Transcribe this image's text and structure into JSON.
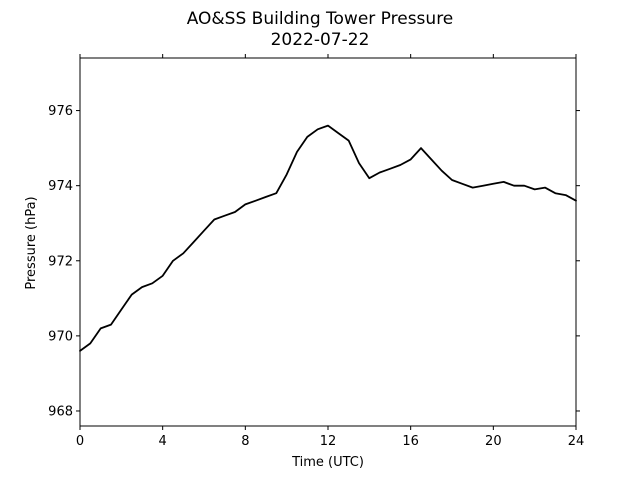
{
  "chart_data": {
    "type": "line",
    "title": "AO&SS Building Tower Pressure",
    "subtitle": "2022-07-22",
    "xlabel": "Time (UTC)",
    "ylabel": "Pressure (hPa)",
    "xlim": [
      0,
      24
    ],
    "ylim": [
      967.6,
      977.4
    ],
    "xticks": [
      0,
      4,
      8,
      12,
      16,
      20,
      24
    ],
    "yticks": [
      968,
      970,
      972,
      974,
      976
    ],
    "grid": false,
    "line_color": "#000000",
    "series": [
      {
        "x": [
          0,
          0.5,
          1,
          1.5,
          2,
          2.5,
          3,
          3.5,
          4,
          4.5,
          5,
          5.5,
          6,
          6.5,
          7,
          7.5,
          8,
          8.5,
          9,
          9.5,
          10,
          10.5,
          11,
          11.5,
          12,
          12.5,
          13,
          13.5,
          14,
          14.5,
          15,
          15.5,
          16,
          16.5,
          17,
          17.5,
          18,
          18.5,
          19,
          19.5,
          20,
          20.5,
          21,
          21.5,
          22,
          22.5,
          23,
          23.5,
          24
        ],
        "y": [
          969.6,
          969.8,
          970.2,
          970.3,
          970.7,
          971.1,
          971.3,
          971.4,
          971.6,
          972.0,
          972.2,
          972.5,
          972.8,
          973.1,
          973.2,
          973.3,
          973.5,
          973.6,
          973.7,
          973.8,
          974.3,
          974.9,
          975.3,
          975.5,
          975.6,
          975.4,
          975.2,
          974.6,
          974.2,
          974.35,
          974.45,
          974.55,
          974.7,
          975.0,
          974.7,
          974.4,
          974.15,
          974.05,
          973.95,
          974.0,
          974.05,
          974.1,
          974.0,
          974.0,
          973.9,
          973.95,
          973.8,
          973.75,
          973.6
        ]
      }
    ]
  }
}
